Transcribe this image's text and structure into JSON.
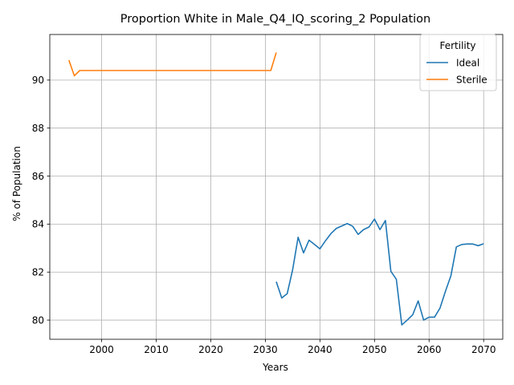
{
  "chart_data": {
    "type": "line",
    "title": "Proportion White in Male_Q4_IQ_scoring_2 Population",
    "xlabel": "Years",
    "ylabel": "% of Population",
    "xlim": [
      1990.5,
      2073.5
    ],
    "ylim": [
      79.2,
      91.9
    ],
    "xticks": [
      2000,
      2010,
      2020,
      2030,
      2040,
      2050,
      2060,
      2070
    ],
    "yticks": [
      80,
      82,
      84,
      86,
      88,
      90
    ],
    "grid": true,
    "legend": {
      "title": "Fertility",
      "placement": "top-right"
    },
    "series": [
      {
        "name": "Ideal",
        "color": "#1f77b4",
        "x": [
          2032,
          2033,
          2034,
          2035,
          2036,
          2037,
          2038,
          2039,
          2040,
          2041,
          2042,
          2043,
          2044,
          2045,
          2046,
          2047,
          2048,
          2049,
          2050,
          2051,
          2052,
          2053,
          2054,
          2055,
          2056,
          2057,
          2058,
          2059,
          2060,
          2061,
          2062,
          2063,
          2064,
          2065,
          2066,
          2067,
          2068,
          2069,
          2070
        ],
        "y": [
          81.6,
          80.92,
          81.1,
          82.1,
          83.45,
          82.8,
          83.33,
          83.15,
          82.97,
          83.3,
          83.6,
          83.82,
          83.92,
          84.02,
          83.91,
          83.57,
          83.77,
          83.88,
          84.21,
          83.77,
          84.15,
          82.03,
          81.7,
          79.8,
          80.0,
          80.22,
          80.8,
          80.0,
          80.12,
          80.12,
          80.5,
          81.2,
          81.85,
          83.05,
          83.15,
          83.17,
          83.17,
          83.1,
          83.18
        ]
      },
      {
        "name": "Sterile",
        "color": "#ff7f0e",
        "x": [
          1994,
          1995,
          1996,
          1997,
          2000,
          2005,
          2010,
          2015,
          2020,
          2025,
          2030,
          2031,
          2032
        ],
        "y": [
          90.83,
          90.18,
          90.4,
          90.4,
          90.4,
          90.4,
          90.4,
          90.4,
          90.4,
          90.4,
          90.4,
          90.4,
          91.15
        ]
      }
    ]
  }
}
